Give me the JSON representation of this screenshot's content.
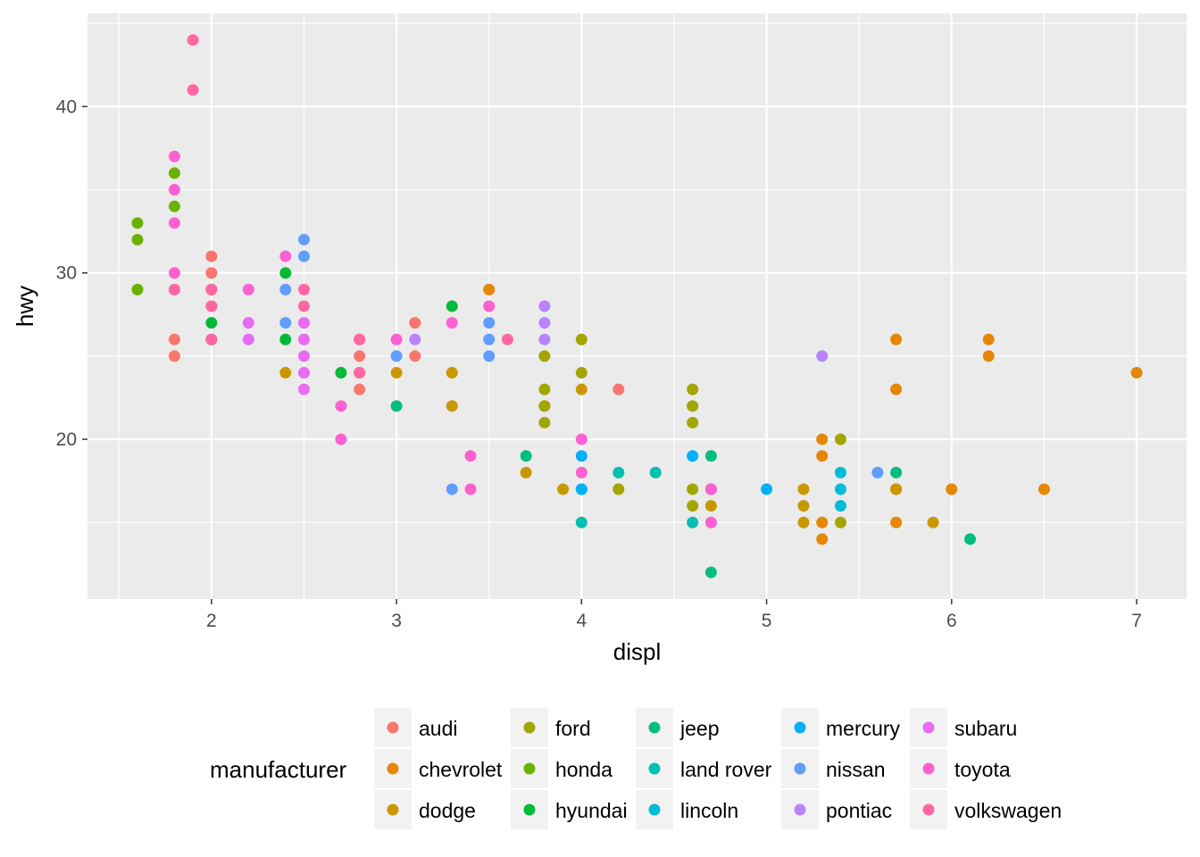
{
  "chart_data": {
    "type": "scatter",
    "title": "",
    "xlabel": "displ",
    "ylabel": "hwy",
    "xlim": [
      1.33,
      7.27
    ],
    "ylim": [
      10.4,
      45.6
    ],
    "x_ticks": [
      2,
      3,
      4,
      5,
      6,
      7
    ],
    "x_tick_labels": [
      "2",
      "3",
      "4",
      "5",
      "6",
      "7"
    ],
    "y_ticks": [
      20,
      30,
      40
    ],
    "y_tick_labels": [
      "20",
      "30",
      "40"
    ],
    "grid": true,
    "panel_background": "#ebebeb",
    "grid_color": "#ffffff",
    "legend": {
      "title": "manufacturer",
      "placement": "bottom",
      "entries": [
        "audi",
        "chevrolet",
        "dodge",
        "ford",
        "honda",
        "hyundai",
        "jeep",
        "land rover",
        "lincoln",
        "mercury",
        "nissan",
        "pontiac",
        "subaru",
        "toyota",
        "volkswagen"
      ]
    },
    "colors": {
      "audi": "#F8766D",
      "chevrolet": "#E58700",
      "dodge": "#C99800",
      "ford": "#A3A500",
      "honda": "#6BB100",
      "hyundai": "#00BA38",
      "jeep": "#00BF7D",
      "land rover": "#00C0AF",
      "lincoln": "#00BCD8",
      "mercury": "#00B0F6",
      "nissan": "#619CFF",
      "pontiac": "#B983FF",
      "subaru": "#E76BF3",
      "toyota": "#FD61D1",
      "volkswagen": "#FF67A4"
    },
    "series": [
      {
        "name": "audi",
        "points": [
          [
            1.8,
            29
          ],
          [
            1.8,
            26
          ],
          [
            1.8,
            25
          ],
          [
            2.0,
            31
          ],
          [
            2.0,
            30
          ],
          [
            2.0,
            29
          ],
          [
            2.0,
            28
          ],
          [
            2.0,
            26
          ],
          [
            2.8,
            26
          ],
          [
            2.8,
            25
          ],
          [
            2.8,
            24
          ],
          [
            2.8,
            23
          ],
          [
            3.1,
            27
          ],
          [
            3.1,
            25
          ],
          [
            4.2,
            23
          ]
        ]
      },
      {
        "name": "chevrolet",
        "points": [
          [
            3.5,
            29
          ],
          [
            5.3,
            20
          ],
          [
            5.3,
            19
          ],
          [
            5.3,
            15
          ],
          [
            5.3,
            14
          ],
          [
            5.7,
            26
          ],
          [
            5.7,
            23
          ],
          [
            5.7,
            17
          ],
          [
            5.7,
            15
          ],
          [
            6.0,
            17
          ],
          [
            6.2,
            26
          ],
          [
            6.2,
            25
          ],
          [
            6.5,
            17
          ],
          [
            7.0,
            24
          ]
        ]
      },
      {
        "name": "dodge",
        "points": [
          [
            2.4,
            24
          ],
          [
            3.0,
            24
          ],
          [
            3.3,
            24
          ],
          [
            3.3,
            22
          ],
          [
            3.7,
            18
          ],
          [
            3.8,
            22
          ],
          [
            3.9,
            17
          ],
          [
            4.0,
            23
          ],
          [
            4.7,
            17
          ],
          [
            4.7,
            16
          ],
          [
            5.2,
            17
          ],
          [
            5.2,
            16
          ],
          [
            5.2,
            15
          ],
          [
            5.7,
            17
          ],
          [
            5.9,
            15
          ]
        ]
      },
      {
        "name": "ford",
        "points": [
          [
            3.8,
            25
          ],
          [
            3.8,
            23
          ],
          [
            3.8,
            22
          ],
          [
            3.8,
            21
          ],
          [
            4.0,
            26
          ],
          [
            4.0,
            24
          ],
          [
            4.2,
            17
          ],
          [
            4.6,
            23
          ],
          [
            4.6,
            22
          ],
          [
            4.6,
            21
          ],
          [
            4.6,
            17
          ],
          [
            4.6,
            16
          ],
          [
            5.4,
            20
          ],
          [
            5.4,
            15
          ]
        ]
      },
      {
        "name": "honda",
        "points": [
          [
            1.6,
            33
          ],
          [
            1.6,
            32
          ],
          [
            1.6,
            29
          ],
          [
            1.8,
            36
          ],
          [
            1.8,
            34
          ],
          [
            2.0,
            29
          ]
        ]
      },
      {
        "name": "hyundai",
        "points": [
          [
            2.0,
            27
          ],
          [
            2.0,
            26
          ],
          [
            2.4,
            30
          ],
          [
            2.4,
            26
          ],
          [
            2.7,
            24
          ],
          [
            3.3,
            28
          ]
        ]
      },
      {
        "name": "jeep",
        "points": [
          [
            3.0,
            22
          ],
          [
            3.7,
            19
          ],
          [
            4.0,
            17
          ],
          [
            4.7,
            19
          ],
          [
            4.7,
            17
          ],
          [
            4.7,
            12
          ],
          [
            5.7,
            18
          ],
          [
            6.1,
            14
          ]
        ]
      },
      {
        "name": "land rover",
        "points": [
          [
            4.0,
            15
          ],
          [
            4.2,
            18
          ],
          [
            4.4,
            18
          ],
          [
            4.6,
            15
          ]
        ]
      },
      {
        "name": "lincoln",
        "points": [
          [
            5.4,
            18
          ],
          [
            5.4,
            17
          ],
          [
            5.4,
            16
          ]
        ]
      },
      {
        "name": "mercury",
        "points": [
          [
            4.0,
            19
          ],
          [
            4.0,
            17
          ],
          [
            4.6,
            19
          ],
          [
            5.0,
            17
          ]
        ]
      },
      {
        "name": "nissan",
        "points": [
          [
            2.4,
            29
          ],
          [
            2.4,
            27
          ],
          [
            2.5,
            32
          ],
          [
            2.5,
            31
          ],
          [
            3.0,
            25
          ],
          [
            3.3,
            17
          ],
          [
            3.5,
            27
          ],
          [
            3.5,
            26
          ],
          [
            3.5,
            25
          ],
          [
            5.6,
            18
          ]
        ]
      },
      {
        "name": "pontiac",
        "points": [
          [
            3.1,
            26
          ],
          [
            3.8,
            28
          ],
          [
            3.8,
            27
          ],
          [
            3.8,
            26
          ],
          [
            5.3,
            25
          ]
        ]
      },
      {
        "name": "subaru",
        "points": [
          [
            2.2,
            27
          ],
          [
            2.2,
            26
          ],
          [
            2.5,
            27
          ],
          [
            2.5,
            26
          ],
          [
            2.5,
            25
          ],
          [
            2.5,
            24
          ],
          [
            2.5,
            23
          ]
        ]
      },
      {
        "name": "toyota",
        "points": [
          [
            1.8,
            37
          ],
          [
            1.8,
            35
          ],
          [
            1.8,
            33
          ],
          [
            1.8,
            30
          ],
          [
            2.2,
            29
          ],
          [
            2.4,
            31
          ],
          [
            2.7,
            22
          ],
          [
            2.7,
            20
          ],
          [
            3.0,
            26
          ],
          [
            3.3,
            27
          ],
          [
            3.4,
            19
          ],
          [
            3.4,
            17
          ],
          [
            3.5,
            28
          ],
          [
            4.0,
            20
          ],
          [
            4.0,
            18
          ],
          [
            4.7,
            17
          ],
          [
            4.7,
            15
          ]
        ]
      },
      {
        "name": "volkswagen",
        "points": [
          [
            1.8,
            29
          ],
          [
            1.9,
            44
          ],
          [
            1.9,
            41
          ],
          [
            2.0,
            29
          ],
          [
            2.0,
            28
          ],
          [
            2.0,
            26
          ],
          [
            2.5,
            29
          ],
          [
            2.5,
            28
          ],
          [
            2.8,
            26
          ],
          [
            2.8,
            24
          ],
          [
            3.6,
            26
          ]
        ]
      }
    ]
  }
}
